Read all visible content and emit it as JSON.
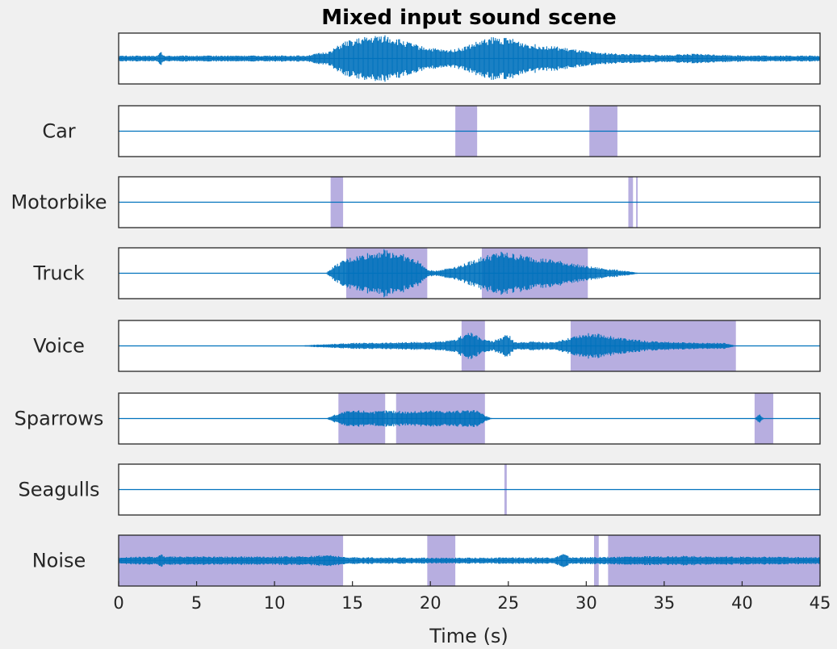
{
  "chart_data": {
    "type": "area",
    "title": "Mixed input sound scene",
    "xlabel": "Time (s)",
    "ylabel": "",
    "xlim": [
      0,
      45
    ],
    "xticks": [
      0,
      5,
      10,
      15,
      20,
      25,
      30,
      35,
      40,
      45
    ],
    "colors": {
      "waveform": "#0072bd",
      "highlight": "#b7aee0",
      "axes_border": "#262626",
      "axes_background": "#ffffff",
      "figure_background": "#f0f0f0"
    },
    "rows": [
      {
        "label": "",
        "highlights": [],
        "envelope": [
          [
            0,
            0.12
          ],
          [
            2.5,
            0.12
          ],
          [
            2.7,
            0.3
          ],
          [
            2.9,
            0.12
          ],
          [
            12,
            0.13
          ],
          [
            13.5,
            0.3
          ],
          [
            14.5,
            0.7
          ],
          [
            15.5,
            0.85
          ],
          [
            17,
            1.0
          ],
          [
            18,
            0.8
          ],
          [
            19.5,
            0.5
          ],
          [
            21,
            0.35
          ],
          [
            22,
            0.45
          ],
          [
            23,
            0.7
          ],
          [
            24,
            0.9
          ],
          [
            25,
            0.85
          ],
          [
            26.5,
            0.6
          ],
          [
            28,
            0.5
          ],
          [
            30,
            0.3
          ],
          [
            32,
            0.2
          ],
          [
            35,
            0.15
          ],
          [
            37,
            0.2
          ],
          [
            40,
            0.13
          ],
          [
            45,
            0.12
          ]
        ]
      },
      {
        "label": "Car",
        "highlights": [
          [
            21.6,
            23.0
          ],
          [
            30.2,
            32.0
          ]
        ],
        "envelope": []
      },
      {
        "label": "Motorbike",
        "highlights": [
          [
            13.6,
            14.4
          ],
          [
            32.7,
            33.0
          ],
          [
            33.2,
            33.3
          ]
        ],
        "envelope": []
      },
      {
        "label": "Truck",
        "highlights": [
          [
            14.6,
            19.8
          ],
          [
            23.3,
            30.1
          ]
        ],
        "envelope": [
          [
            0,
            0
          ],
          [
            13.3,
            0
          ],
          [
            13.8,
            0.3
          ],
          [
            14.6,
            0.6
          ],
          [
            16,
            0.85
          ],
          [
            17,
            1.0
          ],
          [
            18,
            0.85
          ],
          [
            19.3,
            0.5
          ],
          [
            19.8,
            0.15
          ],
          [
            20.3,
            0.1
          ],
          [
            22,
            0.35
          ],
          [
            23.3,
            0.7
          ],
          [
            24.5,
            0.9
          ],
          [
            26,
            0.75
          ],
          [
            28,
            0.55
          ],
          [
            30,
            0.3
          ],
          [
            32.5,
            0.1
          ],
          [
            33.5,
            0
          ],
          [
            45,
            0
          ]
        ]
      },
      {
        "label": "Voice",
        "highlights": [
          [
            22.0,
            23.5
          ],
          [
            29.0,
            39.6
          ]
        ],
        "envelope": [
          [
            0,
            0
          ],
          [
            11.5,
            0
          ],
          [
            12.5,
            0.05
          ],
          [
            15,
            0.12
          ],
          [
            18,
            0.15
          ],
          [
            20.5,
            0.18
          ],
          [
            21.5,
            0.25
          ],
          [
            22.5,
            0.6
          ],
          [
            23.3,
            0.3
          ],
          [
            24,
            0.2
          ],
          [
            25,
            0.5
          ],
          [
            25.4,
            0.15
          ],
          [
            26.5,
            0.2
          ],
          [
            28,
            0.15
          ],
          [
            29.3,
            0.45
          ],
          [
            30.5,
            0.55
          ],
          [
            32,
            0.35
          ],
          [
            34,
            0.2
          ],
          [
            36,
            0.15
          ],
          [
            39,
            0.12
          ],
          [
            39.6,
            0
          ],
          [
            45,
            0
          ]
        ]
      },
      {
        "label": "Sparrows",
        "highlights": [
          [
            14.1,
            17.1
          ],
          [
            17.8,
            23.5
          ],
          [
            40.8,
            42.0
          ]
        ],
        "envelope": [
          [
            0,
            0
          ],
          [
            13.3,
            0
          ],
          [
            13.8,
            0.15
          ],
          [
            14.5,
            0.3
          ],
          [
            15.5,
            0.35
          ],
          [
            16.5,
            0.3
          ],
          [
            17.2,
            0.35
          ],
          [
            18.5,
            0.3
          ],
          [
            20,
            0.35
          ],
          [
            21.5,
            0.33
          ],
          [
            23,
            0.35
          ],
          [
            23.6,
            0.1
          ],
          [
            24,
            0
          ],
          [
            40.8,
            0
          ],
          [
            41.1,
            0.2
          ],
          [
            41.4,
            0
          ],
          [
            45,
            0
          ]
        ]
      },
      {
        "label": "Seagulls",
        "highlights": [
          [
            24.75,
            24.9
          ]
        ],
        "envelope": []
      },
      {
        "label": "Noise",
        "highlights": [
          [
            0,
            14.4
          ],
          [
            19.8,
            21.6
          ],
          [
            30.5,
            30.8
          ],
          [
            31.4,
            45.0
          ]
        ],
        "envelope": [
          [
            0,
            0.15
          ],
          [
            2.5,
            0.17
          ],
          [
            2.7,
            0.3
          ],
          [
            3,
            0.17
          ],
          [
            12,
            0.18
          ],
          [
            13.5,
            0.25
          ],
          [
            14.5,
            0.15
          ],
          [
            20,
            0.12
          ],
          [
            28,
            0.14
          ],
          [
            28.5,
            0.3
          ],
          [
            29,
            0.14
          ],
          [
            36,
            0.2
          ],
          [
            39,
            0.17
          ],
          [
            45,
            0.15
          ]
        ]
      }
    ]
  }
}
